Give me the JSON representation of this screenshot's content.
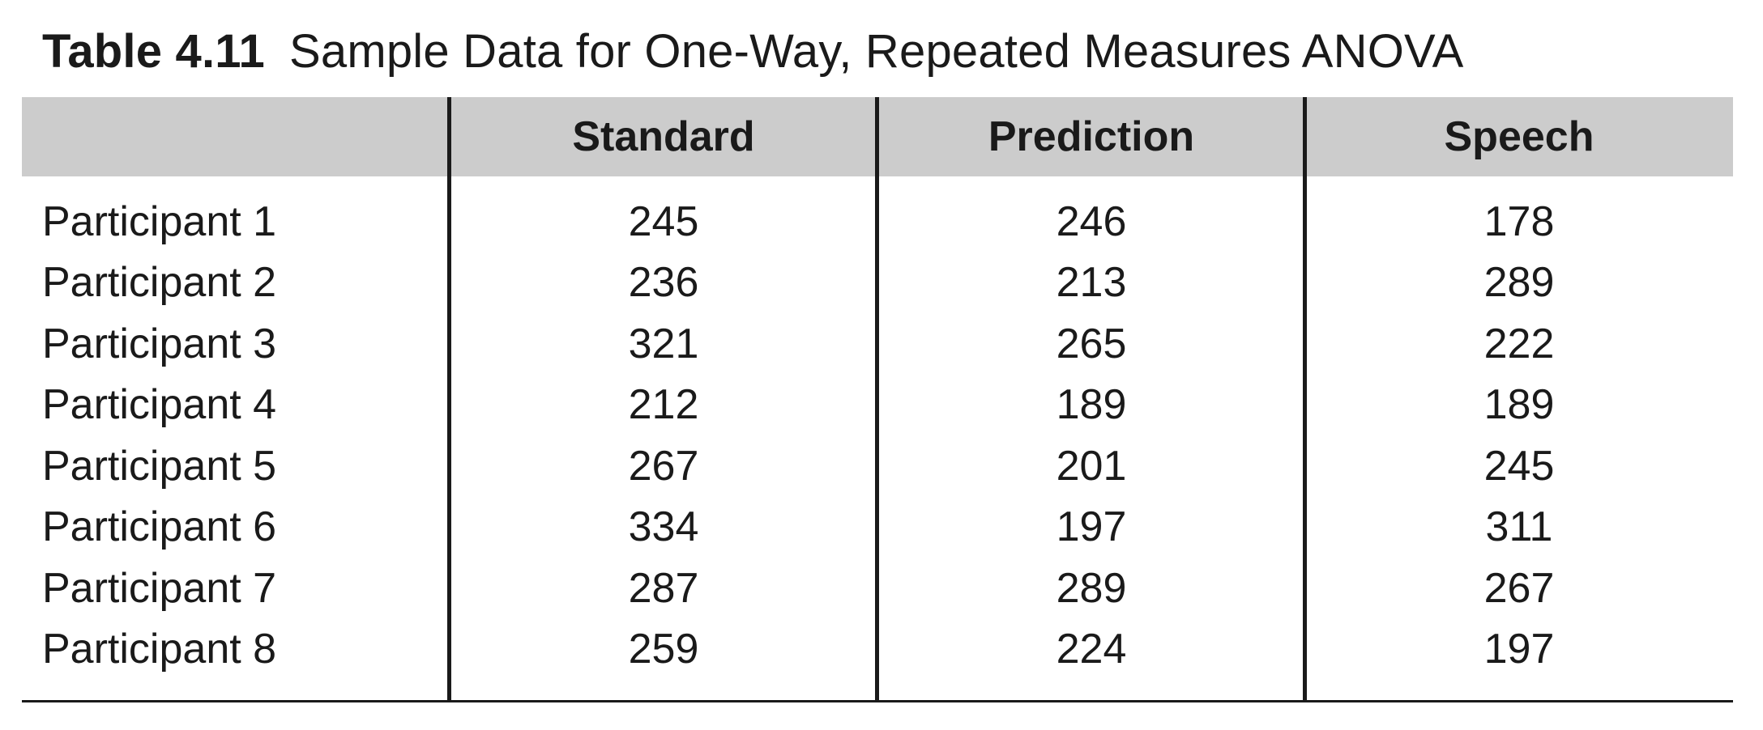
{
  "caption": {
    "number": "Table 4.11",
    "title": "Sample Data for One-Way, Repeated Measures ANOVA"
  },
  "table": {
    "columns": [
      "",
      "Standard",
      "Prediction",
      "Speech"
    ],
    "rows": [
      {
        "participant": "Participant 1",
        "standard": "245",
        "prediction": "246",
        "speech": "178"
      },
      {
        "participant": "Participant 2",
        "standard": "236",
        "prediction": "213",
        "speech": "289"
      },
      {
        "participant": "Participant 3",
        "standard": "321",
        "prediction": "265",
        "speech": "222"
      },
      {
        "participant": "Participant 4",
        "standard": "212",
        "prediction": "189",
        "speech": "189"
      },
      {
        "participant": "Participant 5",
        "standard": "267",
        "prediction": "201",
        "speech": "245"
      },
      {
        "participant": "Participant 6",
        "standard": "334",
        "prediction": "197",
        "speech": "311"
      },
      {
        "participant": "Participant 7",
        "standard": "287",
        "prediction": "289",
        "speech": "267"
      },
      {
        "participant": "Participant 8",
        "standard": "259",
        "prediction": "224",
        "speech": "197"
      }
    ]
  },
  "colors": {
    "header_background": "#cccccc",
    "rule": "#1a1a1a",
    "text": "#1a1a1a"
  }
}
